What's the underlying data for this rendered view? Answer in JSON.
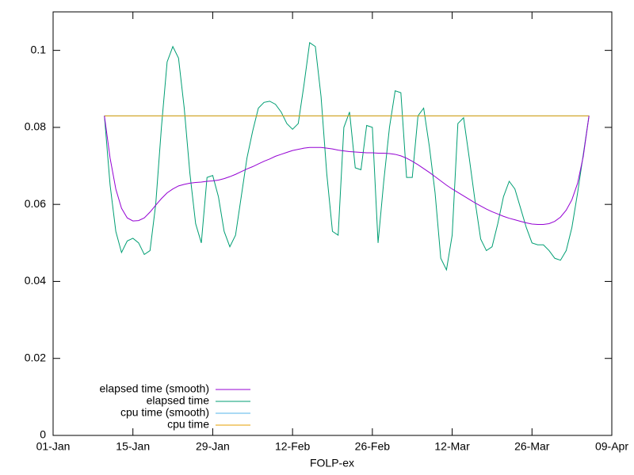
{
  "chart_data": {
    "type": "line",
    "xlabel": "FOLP-ex",
    "x": [
      "10-Jan",
      "11-Jan",
      "12-Jan",
      "13-Jan",
      "14-Jan",
      "15-Jan",
      "16-Jan",
      "17-Jan",
      "18-Jan",
      "19-Jan",
      "20-Jan",
      "21-Jan",
      "22-Jan",
      "23-Jan",
      "24-Jan",
      "25-Jan",
      "26-Jan",
      "27-Jan",
      "28-Jan",
      "29-Jan",
      "30-Jan",
      "31-Jan",
      "01-Feb",
      "02-Feb",
      "03-Feb",
      "04-Feb",
      "05-Feb",
      "06-Feb",
      "07-Feb",
      "08-Feb",
      "09-Feb",
      "10-Feb",
      "11-Feb",
      "12-Feb",
      "13-Feb",
      "14-Feb",
      "15-Feb",
      "16-Feb",
      "17-Feb",
      "18-Feb",
      "19-Feb",
      "20-Feb",
      "21-Feb",
      "22-Feb",
      "23-Feb",
      "24-Feb",
      "25-Feb",
      "26-Feb",
      "27-Feb",
      "28-Feb",
      "01-Mar",
      "02-Mar",
      "03-Mar",
      "04-Mar",
      "05-Mar",
      "06-Mar",
      "07-Mar",
      "08-Mar",
      "09-Mar",
      "10-Mar",
      "11-Mar",
      "12-Mar",
      "13-Mar",
      "14-Mar",
      "15-Mar",
      "16-Mar",
      "17-Mar",
      "18-Mar",
      "19-Mar",
      "20-Mar",
      "21-Mar",
      "22-Mar",
      "23-Mar",
      "24-Mar",
      "25-Mar",
      "26-Mar",
      "27-Mar",
      "28-Mar",
      "29-Mar",
      "30-Mar",
      "31-Mar",
      "01-Apr",
      "02-Apr",
      "03-Apr",
      "04-Apr",
      "05-Apr"
    ],
    "series": [
      {
        "name": "elapsed time (smooth)",
        "color": "#9400d3",
        "values": [
          0.083,
          0.072,
          0.064,
          0.059,
          0.0565,
          0.0557,
          0.0558,
          0.0565,
          0.058,
          0.0598,
          0.0615,
          0.063,
          0.064,
          0.0648,
          0.0652,
          0.0655,
          0.0657,
          0.0658,
          0.066,
          0.0661,
          0.0663,
          0.0667,
          0.0672,
          0.0678,
          0.0685,
          0.0692,
          0.0698,
          0.0705,
          0.0712,
          0.0718,
          0.0725,
          0.073,
          0.0735,
          0.074,
          0.0743,
          0.0746,
          0.0748,
          0.0748,
          0.0748,
          0.0746,
          0.0744,
          0.0741,
          0.0739,
          0.0737,
          0.0736,
          0.0735,
          0.0734,
          0.0734,
          0.0733,
          0.0733,
          0.0732,
          0.073,
          0.0726,
          0.072,
          0.0712,
          0.0703,
          0.0693,
          0.0683,
          0.0672,
          0.0661,
          0.065,
          0.064,
          0.0631,
          0.0622,
          0.0613,
          0.0604,
          0.0596,
          0.0588,
          0.0581,
          0.0575,
          0.0569,
          0.0564,
          0.056,
          0.0556,
          0.0552,
          0.0549,
          0.0548,
          0.0548,
          0.055,
          0.0556,
          0.0567,
          0.0585,
          0.0612,
          0.0655,
          0.0725,
          0.083
        ]
      },
      {
        "name": "elapsed time",
        "color": "#009e73",
        "values": [
          0.083,
          0.065,
          0.053,
          0.0475,
          0.0505,
          0.0512,
          0.05,
          0.047,
          0.048,
          0.06,
          0.08,
          0.097,
          0.101,
          0.098,
          0.085,
          0.068,
          0.055,
          0.05,
          0.067,
          0.0675,
          0.062,
          0.053,
          0.049,
          0.052,
          0.062,
          0.072,
          0.079,
          0.085,
          0.0865,
          0.0868,
          0.086,
          0.084,
          0.081,
          0.0795,
          0.081,
          0.091,
          0.102,
          0.101,
          0.088,
          0.068,
          0.053,
          0.052,
          0.08,
          0.084,
          0.0695,
          0.069,
          0.0805,
          0.08,
          0.05,
          0.066,
          0.08,
          0.0895,
          0.089,
          0.067,
          0.067,
          0.083,
          0.085,
          0.075,
          0.063,
          0.046,
          0.043,
          0.052,
          0.081,
          0.0825,
          0.072,
          0.061,
          0.051,
          0.048,
          0.049,
          0.055,
          0.062,
          0.066,
          0.064,
          0.059,
          0.054,
          0.05,
          0.0495,
          0.0495,
          0.048,
          0.046,
          0.0455,
          0.048,
          0.054,
          0.063,
          0.073,
          0.083
        ]
      },
      {
        "name": "cpu time (smooth)",
        "color": "#56b4e9",
        "values": [
          0.083,
          0.083,
          0.083,
          0.083,
          0.083,
          0.083,
          0.083,
          0.083,
          0.083,
          0.083,
          0.083,
          0.083,
          0.083,
          0.083,
          0.083,
          0.083,
          0.083,
          0.083,
          0.083,
          0.083,
          0.083,
          0.083,
          0.083,
          0.083,
          0.083,
          0.083,
          0.083,
          0.083,
          0.083,
          0.083,
          0.083,
          0.083,
          0.083,
          0.083,
          0.083,
          0.083,
          0.083,
          0.083,
          0.083,
          0.083,
          0.083,
          0.083,
          0.083,
          0.083,
          0.083,
          0.083,
          0.083,
          0.083,
          0.083,
          0.083,
          0.083,
          0.083,
          0.083,
          0.083,
          0.083,
          0.083,
          0.083,
          0.083,
          0.083,
          0.083,
          0.083,
          0.083,
          0.083,
          0.083,
          0.083,
          0.083,
          0.083,
          0.083,
          0.083,
          0.083,
          0.083,
          0.083,
          0.083,
          0.083,
          0.083,
          0.083,
          0.083,
          0.083,
          0.083,
          0.083,
          0.083,
          0.083,
          0.083,
          0.083,
          0.083,
          0.083
        ]
      },
      {
        "name": "cpu time",
        "color": "#e69f00",
        "values": [
          0.083,
          0.083,
          0.083,
          0.083,
          0.083,
          0.083,
          0.083,
          0.083,
          0.083,
          0.083,
          0.083,
          0.083,
          0.083,
          0.083,
          0.083,
          0.083,
          0.083,
          0.083,
          0.083,
          0.083,
          0.083,
          0.083,
          0.083,
          0.083,
          0.083,
          0.083,
          0.083,
          0.083,
          0.083,
          0.083,
          0.083,
          0.083,
          0.083,
          0.083,
          0.083,
          0.083,
          0.083,
          0.083,
          0.083,
          0.083,
          0.083,
          0.083,
          0.083,
          0.083,
          0.083,
          0.083,
          0.083,
          0.083,
          0.083,
          0.083,
          0.083,
          0.083,
          0.083,
          0.083,
          0.083,
          0.083,
          0.083,
          0.083,
          0.083,
          0.083,
          0.083,
          0.083,
          0.083,
          0.083,
          0.083,
          0.083,
          0.083,
          0.083,
          0.083,
          0.083,
          0.083,
          0.083,
          0.083,
          0.083,
          0.083,
          0.083,
          0.083,
          0.083,
          0.083,
          0.083,
          0.083,
          0.083,
          0.083,
          0.083,
          0.083,
          0.083
        ]
      }
    ],
    "xlim": [
      "01-Jan",
      "09-Apr"
    ],
    "xticks": [
      "01-Jan",
      "15-Jan",
      "29-Jan",
      "12-Feb",
      "26-Feb",
      "12-Mar",
      "26-Mar",
      "09-Apr"
    ],
    "ylim": [
      0,
      0.11
    ],
    "yticks": [
      0,
      0.02,
      0.04,
      0.06,
      0.08,
      0.1
    ],
    "grid": false,
    "legend": "bottom-left"
  }
}
